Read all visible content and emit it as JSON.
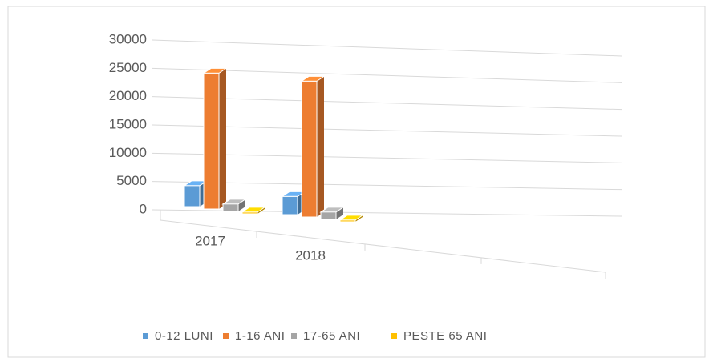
{
  "chart_data": {
    "type": "bar3d",
    "categories": [
      "2017",
      "2018"
    ],
    "series": [
      {
        "name": "0-12 LUNI",
        "color": "#5b9bd5",
        "values": [
          3700,
          3200
        ]
      },
      {
        "name": "1-16 ANI",
        "color": "#ed7d31",
        "values": [
          24000,
          24000
        ]
      },
      {
        "name": "17-65 ANI",
        "color": "#a5a5a5",
        "values": [
          1300,
          1300
        ]
      },
      {
        "name": "PESTE 65 ANI",
        "color": "#ffc000",
        "values": [
          300,
          300
        ]
      }
    ],
    "ylim": [
      0,
      30000
    ],
    "yticks": [
      0,
      5000,
      10000,
      15000,
      20000,
      25000,
      30000
    ],
    "grid": true,
    "legend": "bottom"
  }
}
